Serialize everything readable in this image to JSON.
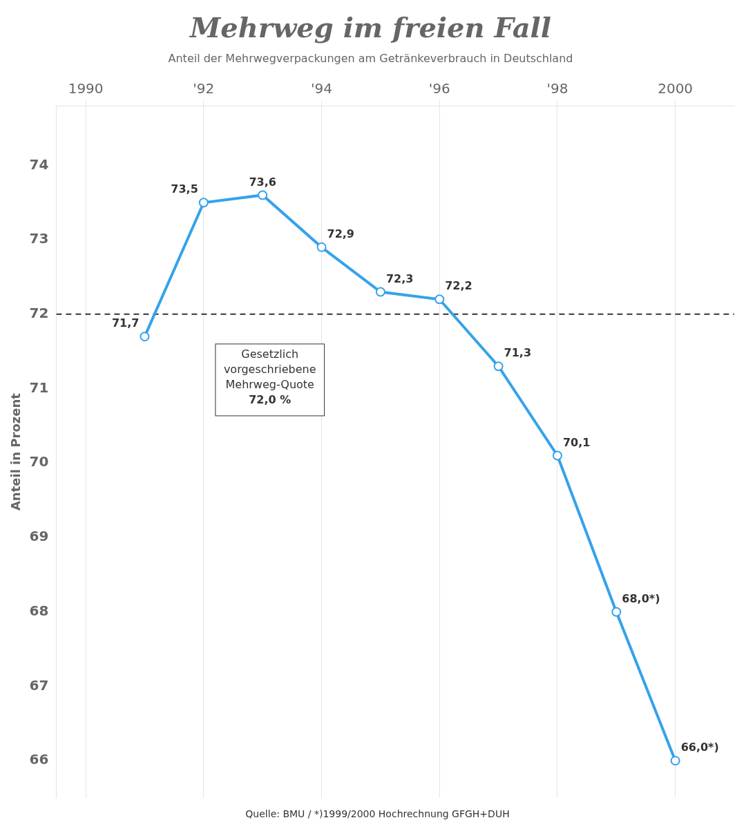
{
  "chart_data": {
    "type": "line",
    "title": "Mehrweg im freien Fall",
    "subtitle": "Anteil der Mehrwegverpackungen am Getränkeverbrauch in Deutschland",
    "y_label": "Anteil in Prozent",
    "source": "Quelle: BMU / *)1999/2000 Hochrechnung GFGH+DUH",
    "x": [
      1991,
      1992,
      1993,
      1994,
      1995,
      1996,
      1997,
      1998,
      1999,
      2000
    ],
    "values": [
      71.7,
      73.5,
      73.6,
      72.9,
      72.3,
      72.2,
      71.3,
      70.1,
      68.0,
      66.0
    ],
    "value_labels": [
      "71,7",
      "73,5",
      "73,6",
      "72,9",
      "72,3",
      "72,2",
      "71,3",
      "70,1",
      "68,0*)",
      "66,0*)"
    ],
    "data_labels": true,
    "marker": "circle",
    "xlim": [
      1989.5,
      2001.0
    ],
    "xticks": [
      {
        "value": 1990,
        "label": "1990"
      },
      {
        "value": 1992,
        "label": "'92"
      },
      {
        "value": 1994,
        "label": "'94"
      },
      {
        "value": 1996,
        "label": "'96"
      },
      {
        "value": 1998,
        "label": "'98"
      },
      {
        "value": 2000,
        "label": "2000"
      }
    ],
    "ylim": [
      65.5,
      74.8
    ],
    "yticks": [
      66,
      67,
      68,
      69,
      70,
      71,
      72,
      73,
      74
    ],
    "grid": "x",
    "reference_lines": [
      {
        "value": 72.0,
        "label": "72,0 %",
        "line_style": "dashed",
        "text": [
          "Gesetzlich",
          "vorgeschriebene",
          "Mehrweg-Quote"
        ],
        "x": 1992.2,
        "y": 71.6
      }
    ]
  }
}
